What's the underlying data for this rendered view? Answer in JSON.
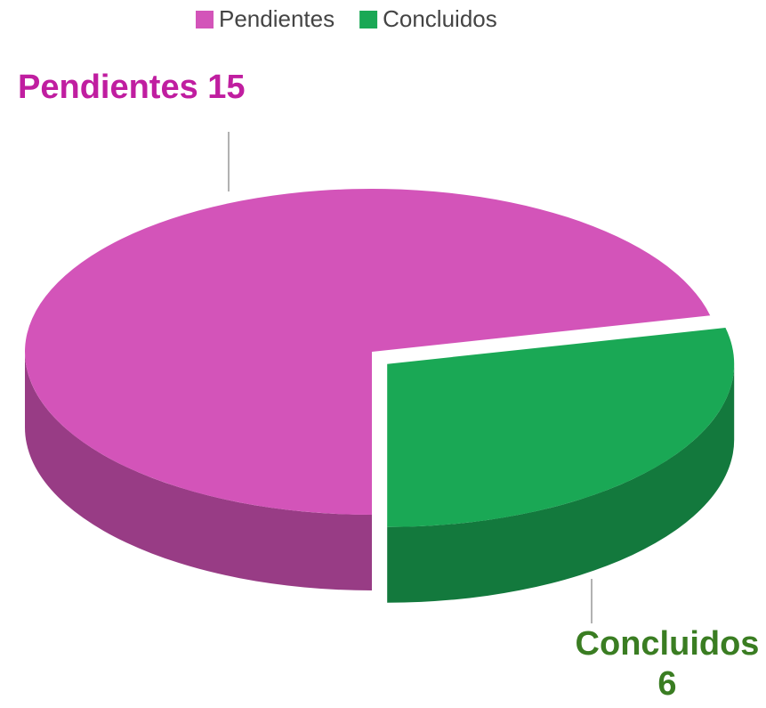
{
  "chart_data": {
    "type": "pie",
    "categories": [
      "Pendientes",
      "Concluidos"
    ],
    "values": [
      15,
      6
    ],
    "colors": [
      "#d354b9",
      "#1aa855"
    ],
    "label_colors": [
      "#c01ea0",
      "#3a7d22"
    ],
    "legend": "top"
  }
}
